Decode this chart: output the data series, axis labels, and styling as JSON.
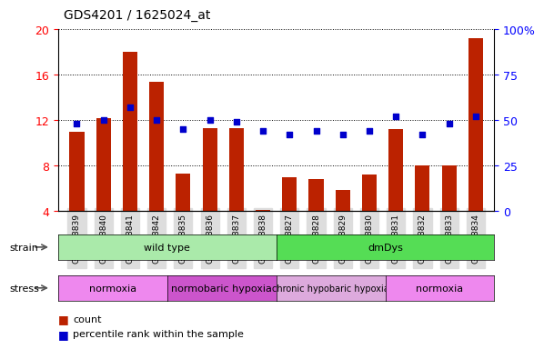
{
  "title": "GDS4201 / 1625024_at",
  "samples": [
    "GSM398839",
    "GSM398840",
    "GSM398841",
    "GSM398842",
    "GSM398835",
    "GSM398836",
    "GSM398837",
    "GSM398838",
    "GSM398827",
    "GSM398828",
    "GSM398829",
    "GSM398830",
    "GSM398831",
    "GSM398832",
    "GSM398833",
    "GSM398834"
  ],
  "count_values": [
    11.0,
    12.2,
    18.0,
    15.4,
    7.3,
    11.3,
    11.3,
    4.1,
    7.0,
    6.8,
    5.8,
    7.2,
    11.2,
    8.0,
    8.0,
    19.2
  ],
  "percentile_values": [
    48,
    50,
    57,
    50,
    45,
    50,
    49,
    44,
    42,
    44,
    42,
    44,
    52,
    42,
    48,
    52
  ],
  "bar_color": "#BB2200",
  "dot_color": "#0000CC",
  "ylim_left": [
    4,
    20
  ],
  "ylim_right": [
    0,
    100
  ],
  "yticks_left": [
    4,
    8,
    12,
    16,
    20
  ],
  "yticks_right": [
    0,
    25,
    50,
    75,
    100
  ],
  "strain_groups": [
    {
      "label": "wild type",
      "start": 0,
      "end": 8,
      "color": "#AAEAAA"
    },
    {
      "label": "dmDys",
      "start": 8,
      "end": 16,
      "color": "#55DD55"
    }
  ],
  "stress_groups": [
    {
      "label": "normoxia",
      "start": 0,
      "end": 4,
      "color": "#EE88EE"
    },
    {
      "label": "normobaric hypoxia",
      "start": 4,
      "end": 8,
      "color": "#CC55CC"
    },
    {
      "label": "chronic hypobaric hypoxia",
      "start": 8,
      "end": 12,
      "color": "#DDAADD"
    },
    {
      "label": "normoxia",
      "start": 12,
      "end": 16,
      "color": "#EE88EE"
    }
  ],
  "legend_count_label": "count",
  "legend_pct_label": "percentile rank within the sample",
  "strain_label": "strain",
  "stress_label": "stress"
}
